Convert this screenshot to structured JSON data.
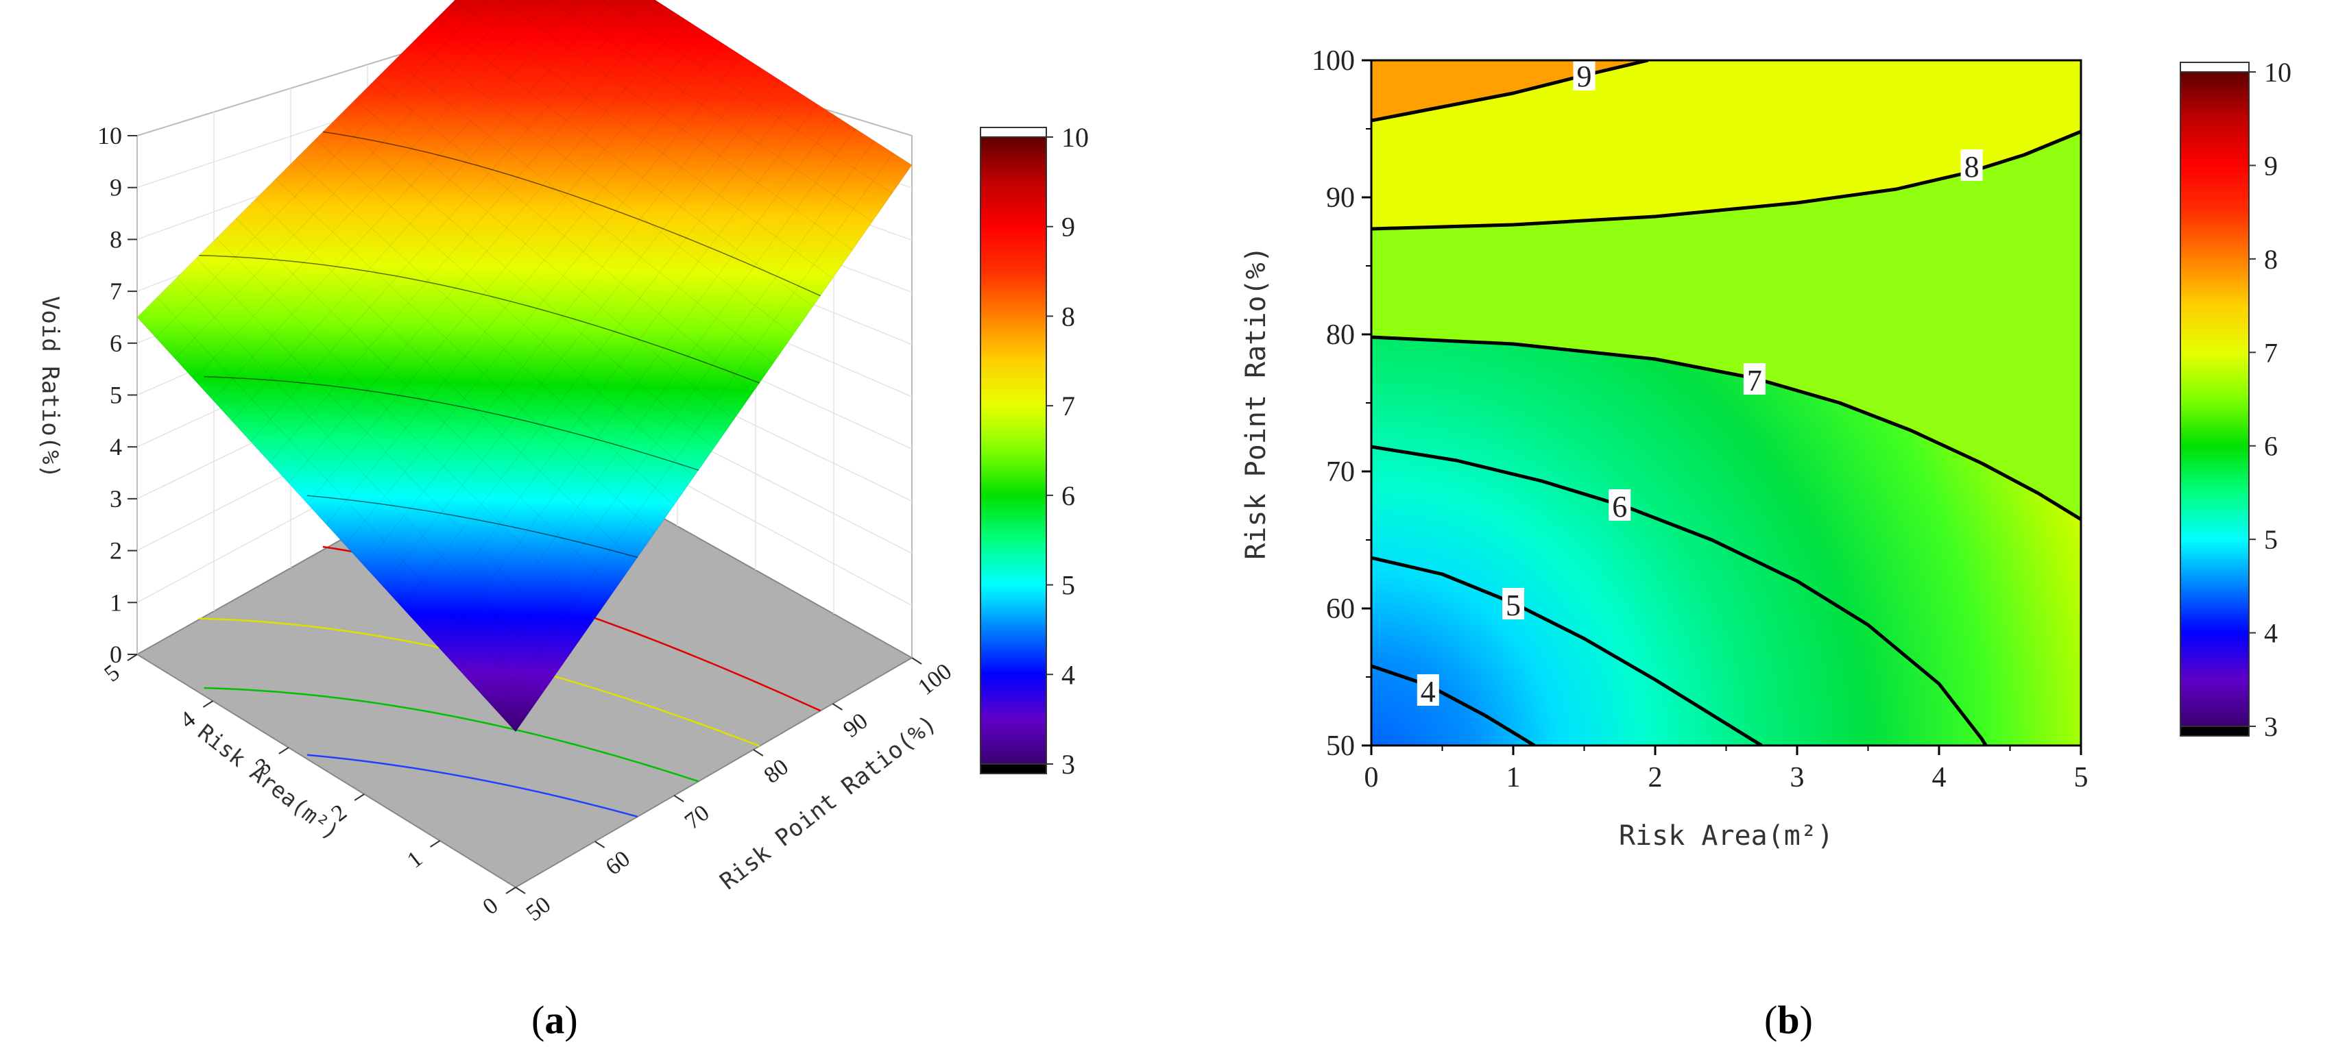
{
  "panels": [
    {
      "id": "a",
      "prefix": "(",
      "letter": "a",
      "suffix": ")"
    },
    {
      "id": "b",
      "prefix": "(",
      "letter": "b",
      "suffix": ")"
    }
  ],
  "colors": {
    "scale": [
      "#3a0070",
      "#6000c8",
      "#0000ff",
      "#0080ff",
      "#00ffff",
      "#00ff80",
      "#00e000",
      "#80ff00",
      "#e6ff00",
      "#ffd000",
      "#ff8000",
      "#ff3000",
      "#ff0000",
      "#c00000",
      "#600000"
    ],
    "floor": "#b0b0b0"
  },
  "chart_data": [
    {
      "type": "surface",
      "zlabel": "Void Ratio(%)",
      "xlabel": "Risk Area(m²)",
      "ylabel": "Risk Point Ratio(%)",
      "x_range": [
        0,
        5
      ],
      "y_range": [
        50,
        100
      ],
      "z_range": [
        0,
        10
      ],
      "x_ticks": [
        "0",
        "1",
        "2",
        "3",
        "4",
        "5"
      ],
      "y_ticks": [
        "50",
        "60",
        "70",
        "80",
        "90",
        "100"
      ],
      "z_ticks": [
        "0",
        "1",
        "2",
        "3",
        "4",
        "5",
        "6",
        "7",
        "8",
        "9",
        "10"
      ],
      "corner_values": {
        "area0_ratio50": 3.0,
        "area5_ratio50": 6.5,
        "area0_ratio100": 9.5,
        "area5_ratio100": 9.7
      },
      "colorbar": {
        "min": 3,
        "max": 10,
        "ticks": [
          "3",
          "4",
          "5",
          "6",
          "7",
          "8",
          "9",
          "10"
        ]
      },
      "floor_contours": [
        {
          "level": 5,
          "color": "#2040ff"
        },
        {
          "level": 6,
          "color": "#00c000"
        },
        {
          "level": 7,
          "color": "#e0e000"
        },
        {
          "level": 8,
          "color": "#e00000"
        }
      ]
    },
    {
      "type": "contour",
      "xlabel": "Risk Area(m²)",
      "ylabel": "Risk Point Ratio(%)",
      "xlim": [
        0,
        5
      ],
      "ylim": [
        50,
        100
      ],
      "x_ticks": [
        "0",
        "1",
        "2",
        "3",
        "4",
        "5"
      ],
      "y_ticks": [
        "50",
        "60",
        "70",
        "80",
        "90",
        "100"
      ],
      "levels": [
        {
          "value": 4,
          "label": "4",
          "points": [
            [
              0,
              55.8
            ],
            [
              0.4,
              54.4
            ],
            [
              0.8,
              52.2
            ],
            [
              1.15,
              50
            ]
          ],
          "label_at": [
            0.4,
            54
          ]
        },
        {
          "value": 5,
          "label": "5",
          "points": [
            [
              0,
              63.7
            ],
            [
              0.5,
              62.5
            ],
            [
              1.0,
              60.4
            ],
            [
              1.5,
              57.8
            ],
            [
              2.0,
              54.8
            ],
            [
              2.5,
              51.6
            ],
            [
              2.75,
              50
            ]
          ],
          "label_at": [
            1.0,
            60.3
          ]
        },
        {
          "value": 6,
          "label": "6",
          "points": [
            [
              0,
              71.8
            ],
            [
              0.6,
              70.8
            ],
            [
              1.2,
              69.3
            ],
            [
              1.8,
              67.4
            ],
            [
              2.4,
              65.0
            ],
            [
              3.0,
              62.0
            ],
            [
              3.5,
              58.8
            ],
            [
              4.0,
              54.5
            ],
            [
              4.3,
              50.5
            ],
            [
              4.33,
              50
            ]
          ],
          "label_at": [
            1.75,
            67.5
          ]
        },
        {
          "value": 7,
          "label": "7",
          "points": [
            [
              0,
              79.8
            ],
            [
              1.0,
              79.3
            ],
            [
              2.0,
              78.2
            ],
            [
              2.7,
              76.8
            ],
            [
              3.3,
              75.0
            ],
            [
              3.8,
              73.0
            ],
            [
              4.3,
              70.6
            ],
            [
              4.7,
              68.4
            ],
            [
              5.0,
              66.5
            ]
          ],
          "label_at": [
            2.7,
            76.7
          ]
        },
        {
          "value": 8,
          "label": "8",
          "points": [
            [
              0,
              87.7
            ],
            [
              1.0,
              88.0
            ],
            [
              2.0,
              88.6
            ],
            [
              3.0,
              89.6
            ],
            [
              3.7,
              90.6
            ],
            [
              4.2,
              91.8
            ],
            [
              4.6,
              93.1
            ],
            [
              5.0,
              94.8
            ]
          ],
          "label_at": [
            4.23,
            92.3
          ]
        },
        {
          "value": 9,
          "label": "9",
          "points": [
            [
              0,
              95.6
            ],
            [
              0.5,
              96.6
            ],
            [
              1.0,
              97.6
            ],
            [
              1.5,
              98.9
            ],
            [
              1.95,
              100
            ]
          ],
          "label_at": [
            1.5,
            98.9
          ]
        }
      ],
      "colorbar": {
        "min": 3,
        "max": 10,
        "ticks": [
          "3",
          "4",
          "5",
          "6",
          "7",
          "8",
          "9",
          "10"
        ]
      }
    }
  ]
}
